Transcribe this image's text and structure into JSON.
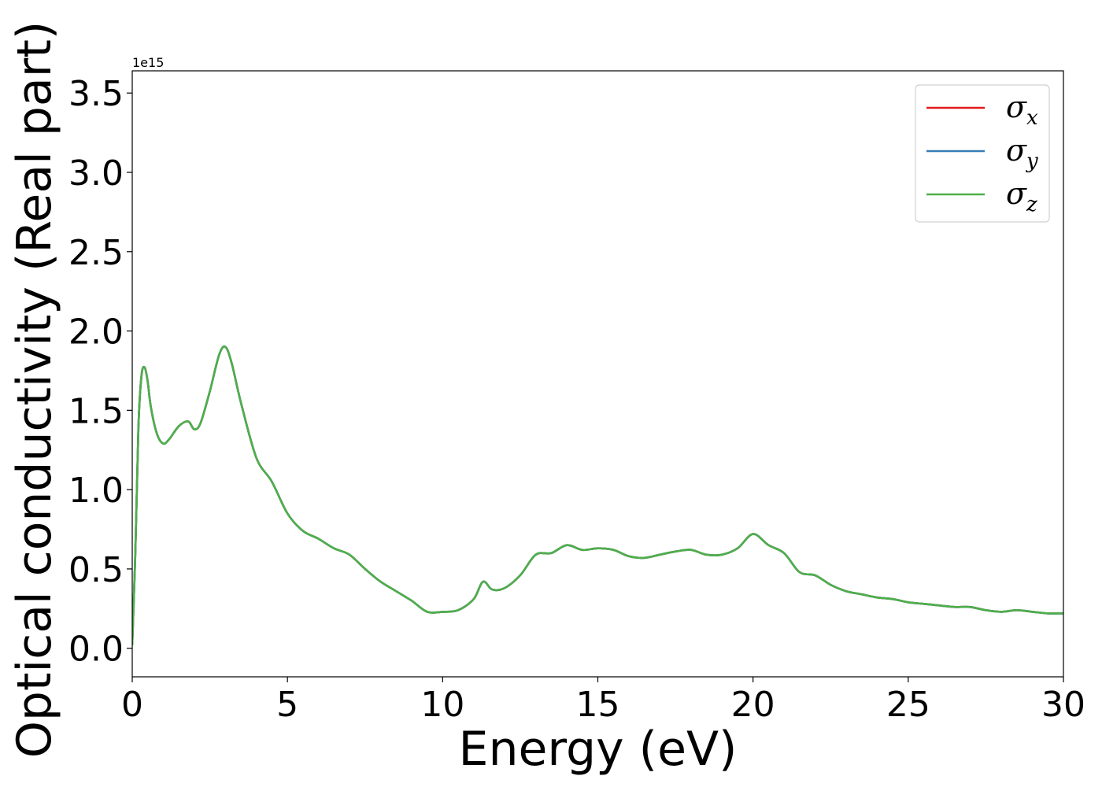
{
  "chart_data": {
    "type": "line",
    "title": "",
    "xlabel": "Energy (eV)",
    "ylabel": "Optical conductivity (Real part)",
    "y_offset_text": "1e15",
    "xlim": [
      0,
      30
    ],
    "ylim": [
      -0.18,
      3.64
    ],
    "xticks": [
      0,
      5,
      10,
      15,
      20,
      25,
      30
    ],
    "xtick_labels": [
      "0",
      "5",
      "10",
      "15",
      "20",
      "25",
      "30"
    ],
    "yticks": [
      0.0,
      0.5,
      1.0,
      1.5,
      2.0,
      2.5,
      3.0,
      3.5
    ],
    "ytick_labels": [
      "0.0",
      "0.5",
      "1.0",
      "1.5",
      "2.0",
      "2.5",
      "3.0",
      "3.5"
    ],
    "grid": false,
    "legend_position": "top-right",
    "colors": {
      "sigma_x": "#e41a1c",
      "sigma_y": "#377eb8",
      "sigma_z": "#4daf4a"
    },
    "x": [
      0,
      0.1,
      0.2,
      0.3,
      0.4,
      0.5,
      0.6,
      0.8,
      1.0,
      1.2,
      1.5,
      1.8,
      2.0,
      2.2,
      2.5,
      2.8,
      3.0,
      3.2,
      3.5,
      4.0,
      4.5,
      5.0,
      5.5,
      6.0,
      6.5,
      7.0,
      7.5,
      8.0,
      8.5,
      9.0,
      9.5,
      10.0,
      10.5,
      11.0,
      11.3,
      11.6,
      12.0,
      12.5,
      13.0,
      13.5,
      14.0,
      14.5,
      15.0,
      15.5,
      16.0,
      16.5,
      17.0,
      17.5,
      18.0,
      18.5,
      19.0,
      19.5,
      20.0,
      20.5,
      21.0,
      21.5,
      22.0,
      22.5,
      23.0,
      23.5,
      24.0,
      24.5,
      25.0,
      25.5,
      26.0,
      26.5,
      27.0,
      27.5,
      28.0,
      28.5,
      29.0,
      29.5,
      30.0
    ],
    "series": [
      {
        "name": "σ",
        "sub": "x",
        "values": [
          0.02,
          0.6,
          1.4,
          1.72,
          1.77,
          1.68,
          1.52,
          1.35,
          1.29,
          1.32,
          1.4,
          1.43,
          1.38,
          1.42,
          1.62,
          1.85,
          1.9,
          1.8,
          1.55,
          1.2,
          1.05,
          0.85,
          0.74,
          0.69,
          0.63,
          0.59,
          0.5,
          0.42,
          0.36,
          0.3,
          0.23,
          0.23,
          0.24,
          0.31,
          0.42,
          0.37,
          0.38,
          0.46,
          0.59,
          0.6,
          0.65,
          0.62,
          0.63,
          0.62,
          0.58,
          0.57,
          0.59,
          0.61,
          0.62,
          0.59,
          0.59,
          0.63,
          0.72,
          0.65,
          0.6,
          0.48,
          0.46,
          0.4,
          0.36,
          0.34,
          0.32,
          0.31,
          0.29,
          0.28,
          0.27,
          0.26,
          0.26,
          0.24,
          0.23,
          0.24,
          0.23,
          0.22,
          0.22
        ]
      },
      {
        "name": "σ",
        "sub": "y",
        "values": [
          0.02,
          0.6,
          1.4,
          1.72,
          1.77,
          1.68,
          1.52,
          1.35,
          1.29,
          1.32,
          1.4,
          1.43,
          1.38,
          1.42,
          1.62,
          1.85,
          1.9,
          1.8,
          1.55,
          1.2,
          1.05,
          0.85,
          0.74,
          0.69,
          0.63,
          0.59,
          0.5,
          0.42,
          0.36,
          0.3,
          0.23,
          0.23,
          0.24,
          0.31,
          0.42,
          0.37,
          0.38,
          0.46,
          0.59,
          0.6,
          0.65,
          0.62,
          0.63,
          0.62,
          0.58,
          0.57,
          0.59,
          0.61,
          0.62,
          0.59,
          0.59,
          0.63,
          0.72,
          0.65,
          0.6,
          0.48,
          0.46,
          0.4,
          0.36,
          0.34,
          0.32,
          0.31,
          0.29,
          0.28,
          0.27,
          0.26,
          0.26,
          0.24,
          0.23,
          0.24,
          0.23,
          0.22,
          0.22
        ]
      },
      {
        "name": "σ",
        "sub": "z",
        "values": [
          0.02,
          0.6,
          1.4,
          1.72,
          1.77,
          1.68,
          1.52,
          1.35,
          1.29,
          1.32,
          1.4,
          1.43,
          1.38,
          1.42,
          1.62,
          1.85,
          1.9,
          1.8,
          1.55,
          1.2,
          1.05,
          0.85,
          0.74,
          0.69,
          0.63,
          0.59,
          0.5,
          0.42,
          0.36,
          0.3,
          0.23,
          0.23,
          0.24,
          0.31,
          0.42,
          0.37,
          0.38,
          0.46,
          0.59,
          0.6,
          0.65,
          0.62,
          0.63,
          0.62,
          0.58,
          0.57,
          0.59,
          0.61,
          0.62,
          0.59,
          0.59,
          0.63,
          0.72,
          0.65,
          0.6,
          0.48,
          0.46,
          0.4,
          0.36,
          0.34,
          0.32,
          0.31,
          0.29,
          0.28,
          0.27,
          0.26,
          0.26,
          0.24,
          0.23,
          0.24,
          0.23,
          0.22,
          0.22
        ]
      }
    ]
  }
}
